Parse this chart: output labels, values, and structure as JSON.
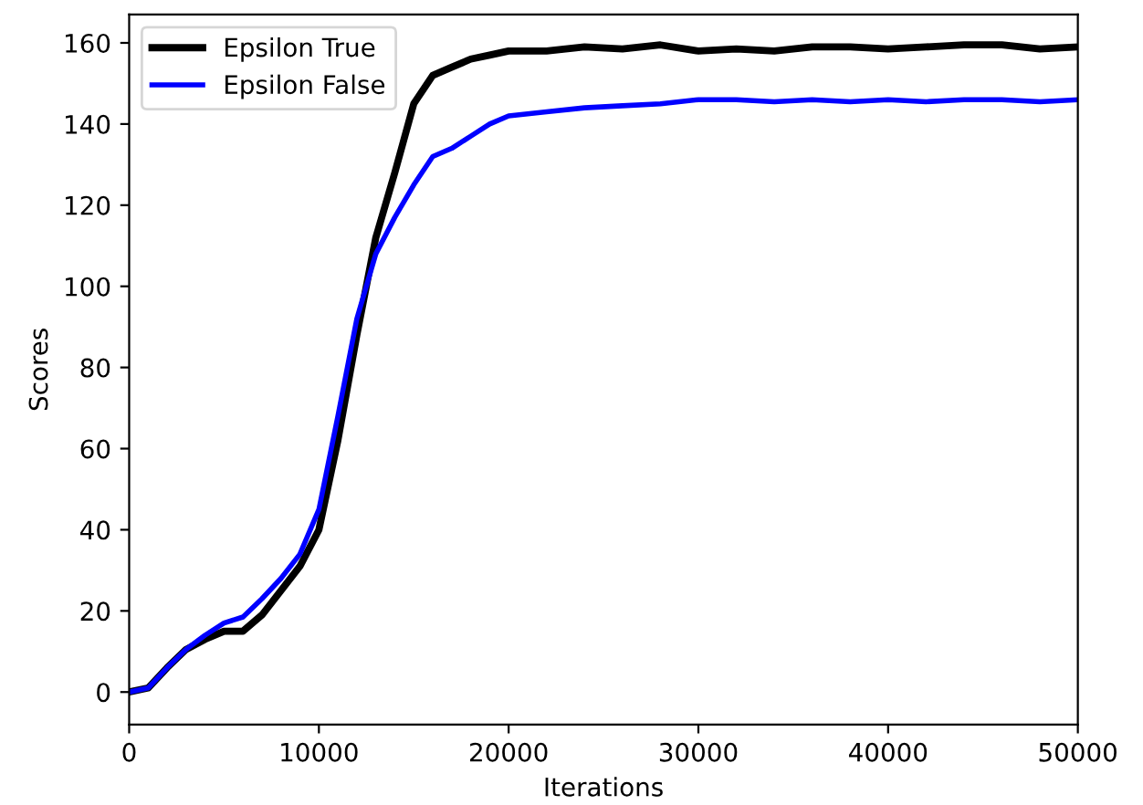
{
  "chart_data": {
    "type": "line",
    "xlabel": "Iterations",
    "ylabel": "Scores",
    "x": [
      0,
      1000,
      2000,
      3000,
      4000,
      5000,
      6000,
      7000,
      8000,
      9000,
      10000,
      11000,
      12000,
      13000,
      14000,
      15000,
      16000,
      17000,
      18000,
      19000,
      20000,
      22000,
      24000,
      26000,
      28000,
      30000,
      32000,
      34000,
      36000,
      38000,
      40000,
      42000,
      44000,
      46000,
      48000,
      50000
    ],
    "series": [
      {
        "name": "Epsilon True",
        "color": "#000000",
        "values": [
          0,
          1,
          6,
          10.5,
          13,
          15,
          15,
          19,
          25,
          31,
          40,
          62,
          88,
          112,
          128,
          145,
          152,
          154,
          156,
          157,
          158,
          158,
          159,
          158.5,
          159.5,
          158,
          158.5,
          158,
          159,
          159,
          158.5,
          159,
          159.5,
          159.5,
          158.5,
          159
        ]
      },
      {
        "name": "Epsilon False",
        "color": "#0000ff",
        "values": [
          0,
          1,
          6,
          10.5,
          14,
          17,
          18.5,
          23,
          28,
          34,
          45,
          68,
          92,
          108,
          117,
          125,
          132,
          134,
          137,
          140,
          142,
          143,
          144,
          144.5,
          145,
          146,
          146,
          145.5,
          146,
          145.5,
          146,
          145.5,
          146,
          146,
          145.5,
          146
        ]
      }
    ],
    "xlim": [
      0,
      50000
    ],
    "ylim": [
      -8,
      167
    ],
    "xticks": [
      0,
      10000,
      20000,
      30000,
      40000,
      50000
    ],
    "yticks": [
      0,
      20,
      40,
      60,
      80,
      100,
      120,
      140,
      160
    ],
    "legend": "top left",
    "grid": false,
    "line_style": "solid"
  }
}
